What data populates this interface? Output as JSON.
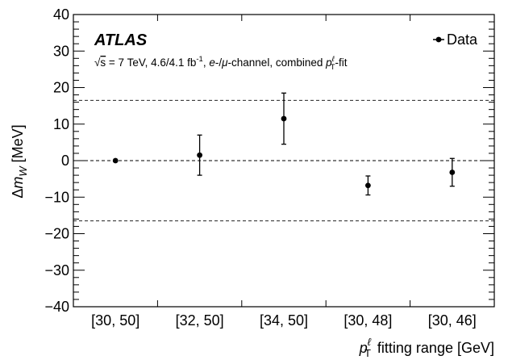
{
  "chart_data": {
    "type": "scatter",
    "categories": [
      "[30, 50]",
      "[32, 50]",
      "[34, 50]",
      "[30, 48]",
      "[30, 46]"
    ],
    "series": [
      {
        "name": "Data",
        "values": [
          0,
          1.5,
          11.5,
          -6.8,
          -3.2
        ],
        "err_low": [
          0,
          5.5,
          7.0,
          2.6,
          3.8
        ],
        "err_high": [
          0,
          5.5,
          7.0,
          2.6,
          3.8
        ]
      }
    ],
    "reference_lines": [
      16.5,
      0,
      -16.5
    ],
    "ylim": [
      -40,
      40
    ],
    "yticks": [
      "40",
      "30",
      "20",
      "10",
      "0",
      "−10",
      "−20",
      "−30",
      "−40"
    ],
    "ylabel_prefix": "Δ",
    "ylabel_var": "m",
    "ylabel_sub": "W",
    "ylabel_unit": " [MeV]",
    "xlabel_var": "p",
    "xlabel_sup": "ℓ",
    "xlabel_sub": "T",
    "xlabel_rest": " fitting range [GeV]",
    "experiment": "ATLAS",
    "sub_sqrt": "√",
    "sub_s": "s",
    "sub_energy": " = 7 TeV, 4.6/4.1 fb",
    "sub_sup": "-1",
    "sub_channel_pre": ", ",
    "sub_channel_e": "e",
    "sub_channel_mid": "-/",
    "sub_channel_mu": "μ",
    "sub_channel_post": "-channel, combined ",
    "sub_p": "p",
    "sub_l": "ℓ",
    "sub_T": "T",
    "sub_fit": "-fit",
    "legend_label": "Data",
    "grid": false,
    "legend_position": "top-right"
  }
}
